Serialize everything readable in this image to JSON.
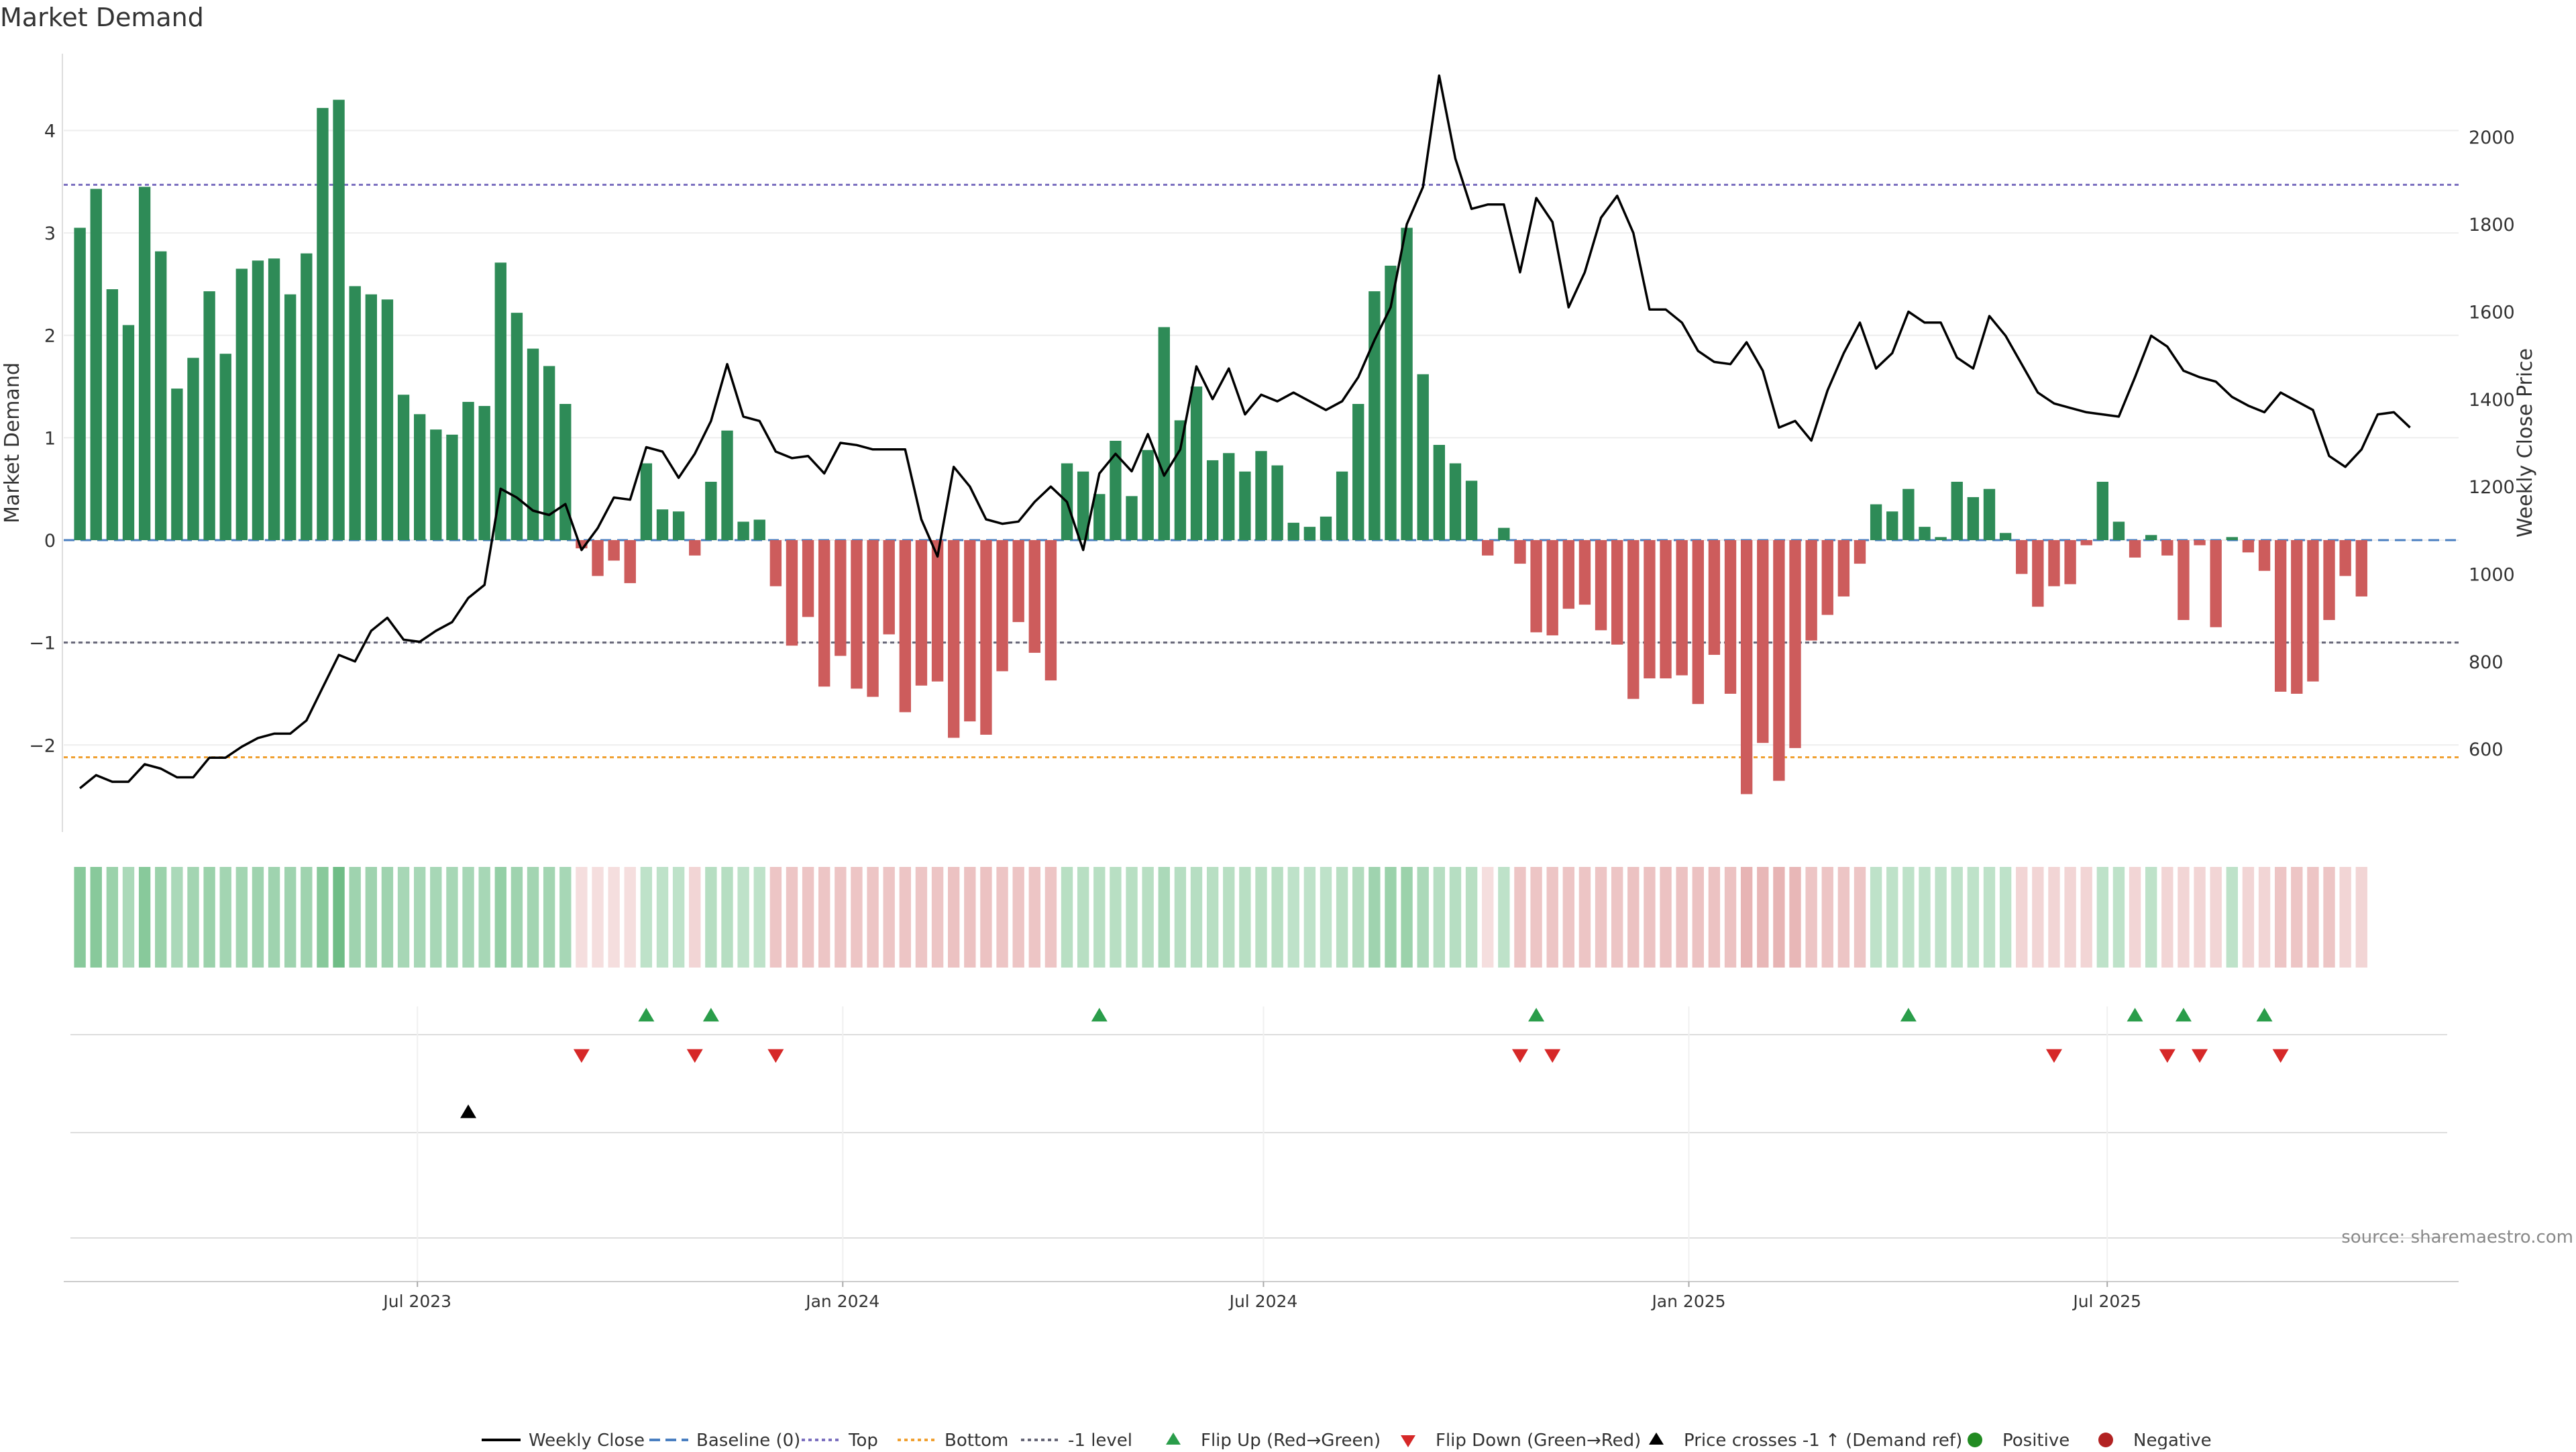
{
  "title": "Market Demand",
  "source_note": "source: sharemaestro.com",
  "colors": {
    "positive_bar": "#2e8b57",
    "negative_bar": "#cd5c5c",
    "price_line": "#000000",
    "baseline": "#4a7fc1",
    "top_line": "#7b6fbf",
    "bottom_line": "#f0a030",
    "minus1_line": "#666677",
    "flip_up": "#2a9d4a",
    "flip_down": "#d62828",
    "price_cross": "#000000",
    "positive_dot": "#228b22",
    "negative_dot": "#b22222",
    "grid": "#eeeeee"
  },
  "chart_data": {
    "type": "bar",
    "xaxis": {
      "tick_labels": [
        "Jul 2023",
        "Jan 2024",
        "Jul 2024",
        "Jan 2025",
        "Jul 2025"
      ],
      "tick_dates": [
        "2023-07-01",
        "2024-01-01",
        "2024-07-01",
        "2025-01-01",
        "2025-07-01"
      ],
      "range": [
        "2023-01-29",
        "2025-11-30"
      ]
    },
    "y_left": {
      "label": "Market Demand",
      "range": [
        -2.85,
        4.75
      ],
      "ticks": [
        -2,
        -1,
        0,
        1,
        2,
        3,
        4
      ],
      "tick_labels": [
        "−2",
        "−1",
        "0",
        "1",
        "2",
        "3",
        "4"
      ]
    },
    "y_right": {
      "label": "Weekly Close Price",
      "range": [
        410,
        2190
      ],
      "ticks": [
        600,
        800,
        1000,
        1200,
        1400,
        1600,
        1800,
        2000
      ],
      "tick_labels": [
        "600",
        "800",
        "1000",
        "1200",
        "1400",
        "1600",
        "1800",
        "2000"
      ]
    },
    "reference_lines": {
      "top": 3.47,
      "bottom": -2.12,
      "minus1": -1.0,
      "baseline": 0
    },
    "start_date": "2023-02-05",
    "week_step_days": 7,
    "demand": [
      3.05,
      3.43,
      2.45,
      2.1,
      3.45,
      2.82,
      1.48,
      1.78,
      2.43,
      1.82,
      2.65,
      2.73,
      2.75,
      2.4,
      2.8,
      4.22,
      4.3,
      2.48,
      2.4,
      2.35,
      1.42,
      1.23,
      1.08,
      1.03,
      1.35,
      1.31,
      2.71,
      2.22,
      1.87,
      1.7,
      1.33,
      -0.08,
      -0.35,
      -0.2,
      -0.42,
      0.75,
      0.3,
      0.28,
      -0.15,
      0.57,
      1.07,
      0.18,
      0.2,
      -0.45,
      -1.03,
      -0.75,
      -1.43,
      -1.13,
      -1.45,
      -1.53,
      -0.92,
      -1.68,
      -1.42,
      -1.38,
      -1.93,
      -1.77,
      -1.9,
      -1.28,
      -0.8,
      -1.1,
      -1.37,
      0.75,
      0.67,
      0.45,
      0.97,
      0.43,
      0.88,
      2.08,
      1.17,
      1.5,
      0.78,
      0.85,
      0.67,
      0.87,
      0.73,
      0.17,
      0.13,
      0.23,
      0.67,
      1.33,
      2.43,
      2.68,
      3.05,
      1.62,
      0.93,
      0.75,
      0.58,
      -0.15,
      0.12,
      -0.23,
      -0.9,
      -0.93,
      -0.67,
      -0.63,
      -0.88,
      -1.02,
      -1.55,
      -1.35,
      -1.35,
      -1.32,
      -1.6,
      -1.12,
      -1.5,
      -2.48,
      -1.98,
      -2.35,
      -2.03,
      -0.98,
      -0.73,
      -0.55,
      -0.23,
      0.35,
      0.28,
      0.5,
      0.13,
      0.03,
      0.57,
      0.42,
      0.5,
      0.07,
      -0.33,
      -0.65,
      -0.45,
      -0.43,
      -0.05,
      0.57,
      0.18,
      -0.17,
      0.05,
      -0.15,
      -0.78,
      -0.05,
      -0.85,
      0.03,
      -0.12,
      -0.3,
      -1.48,
      -1.5,
      -1.38,
      -0.78,
      -0.35,
      -0.55
    ],
    "price": [
      510,
      540,
      525,
      525,
      565,
      555,
      535,
      535,
      580,
      580,
      605,
      625,
      635,
      635,
      665,
      740,
      815,
      800,
      870,
      900,
      850,
      845,
      870,
      890,
      945,
      975,
      1195,
      1175,
      1145,
      1135,
      1160,
      1055,
      1105,
      1175,
      1170,
      1290,
      1280,
      1220,
      1275,
      1350,
      1480,
      1360,
      1350,
      1280,
      1265,
      1270,
      1230,
      1300,
      1295,
      1285,
      1285,
      1285,
      1125,
      1040,
      1245,
      1200,
      1125,
      1115,
      1120,
      1165,
      1200,
      1165,
      1055,
      1230,
      1275,
      1235,
      1320,
      1225,
      1285,
      1475,
      1400,
      1470,
      1365,
      1410,
      1395,
      1415,
      1395,
      1375,
      1395,
      1450,
      1535,
      1610,
      1800,
      1885,
      2140,
      1950,
      1835,
      1845,
      1845,
      1690,
      1860,
      1805,
      1610,
      1690,
      1815,
      1865,
      1780,
      1605,
      1605,
      1575,
      1510,
      1485,
      1480,
      1530,
      1465,
      1335,
      1350,
      1305,
      1420,
      1505,
      1575,
      1470,
      1505,
      1600,
      1575,
      1575,
      1495,
      1470,
      1590,
      1545,
      1480,
      1415,
      1390,
      1380,
      1370,
      1365,
      1360,
      1450,
      1545,
      1520,
      1465,
      1450,
      1440,
      1405,
      1385,
      1370,
      1415,
      1395,
      1375,
      1270,
      1245,
      1285,
      1365,
      1370,
      1335
    ],
    "strip_intensity": [
      -0.55,
      -0.55,
      -0.45,
      -0.35,
      -0.55,
      -0.45,
      -0.35,
      -0.4,
      -0.45,
      -0.4,
      -0.4,
      -0.42,
      -0.42,
      -0.42,
      -0.42,
      -0.55,
      -0.7,
      -0.42,
      -0.42,
      -0.42,
      -0.38,
      -0.38,
      -0.38,
      -0.38,
      -0.38,
      -0.38,
      -0.48,
      -0.42,
      -0.4,
      -0.4,
      -0.38,
      0.15,
      0.15,
      0.15,
      0.15,
      -0.25,
      -0.25,
      -0.25,
      0.2,
      -0.3,
      -0.3,
      -0.25,
      -0.25,
      0.3,
      0.3,
      0.3,
      0.3,
      0.3,
      0.3,
      0.3,
      0.3,
      0.3,
      0.3,
      0.3,
      0.32,
      0.32,
      0.32,
      0.3,
      0.3,
      0.3,
      0.3,
      -0.28,
      -0.28,
      -0.28,
      -0.28,
      -0.28,
      -0.28,
      -0.35,
      -0.3,
      -0.3,
      -0.28,
      -0.28,
      -0.28,
      -0.28,
      -0.28,
      -0.25,
      -0.25,
      -0.25,
      -0.28,
      -0.32,
      -0.42,
      -0.45,
      -0.45,
      -0.35,
      -0.3,
      -0.3,
      -0.28,
      0.15,
      -0.25,
      0.3,
      0.3,
      0.3,
      0.3,
      0.3,
      0.3,
      0.3,
      0.32,
      0.32,
      0.32,
      0.32,
      0.32,
      0.32,
      0.32,
      0.4,
      0.38,
      0.4,
      0.38,
      0.3,
      0.3,
      0.3,
      0.3,
      -0.25,
      -0.25,
      -0.25,
      -0.25,
      -0.25,
      -0.25,
      -0.25,
      -0.25,
      -0.25,
      0.2,
      0.2,
      0.2,
      0.2,
      0.2,
      -0.25,
      -0.25,
      0.2,
      -0.25,
      0.2,
      0.2,
      0.2,
      0.2,
      -0.25,
      0.2,
      0.2,
      0.3,
      0.3,
      0.3,
      0.3,
      0.2,
      0.2
    ],
    "flip_up_indices": [
      35,
      39,
      63,
      90,
      113,
      127,
      130,
      135
    ],
    "flip_down_indices": [
      31,
      38,
      43,
      89,
      91,
      122,
      129,
      131,
      136
    ],
    "price_cross_indices": [
      24
    ],
    "legend": [
      {
        "key": "line",
        "label": "Weekly Close"
      },
      {
        "key": "baseline",
        "label": "Baseline (0)"
      },
      {
        "key": "top",
        "label": "Top"
      },
      {
        "key": "bottom",
        "label": "Bottom"
      },
      {
        "key": "minus1",
        "label": "-1 level"
      },
      {
        "key": "flip_up",
        "label": "Flip Up (Red→Green)"
      },
      {
        "key": "flip_down",
        "label": "Flip Down (Green→Red)"
      },
      {
        "key": "price_cross",
        "label": "Price crosses -1 ↑ (Demand ref)"
      },
      {
        "key": "positive",
        "label": "Positive"
      },
      {
        "key": "negative",
        "label": "Negative"
      }
    ]
  }
}
